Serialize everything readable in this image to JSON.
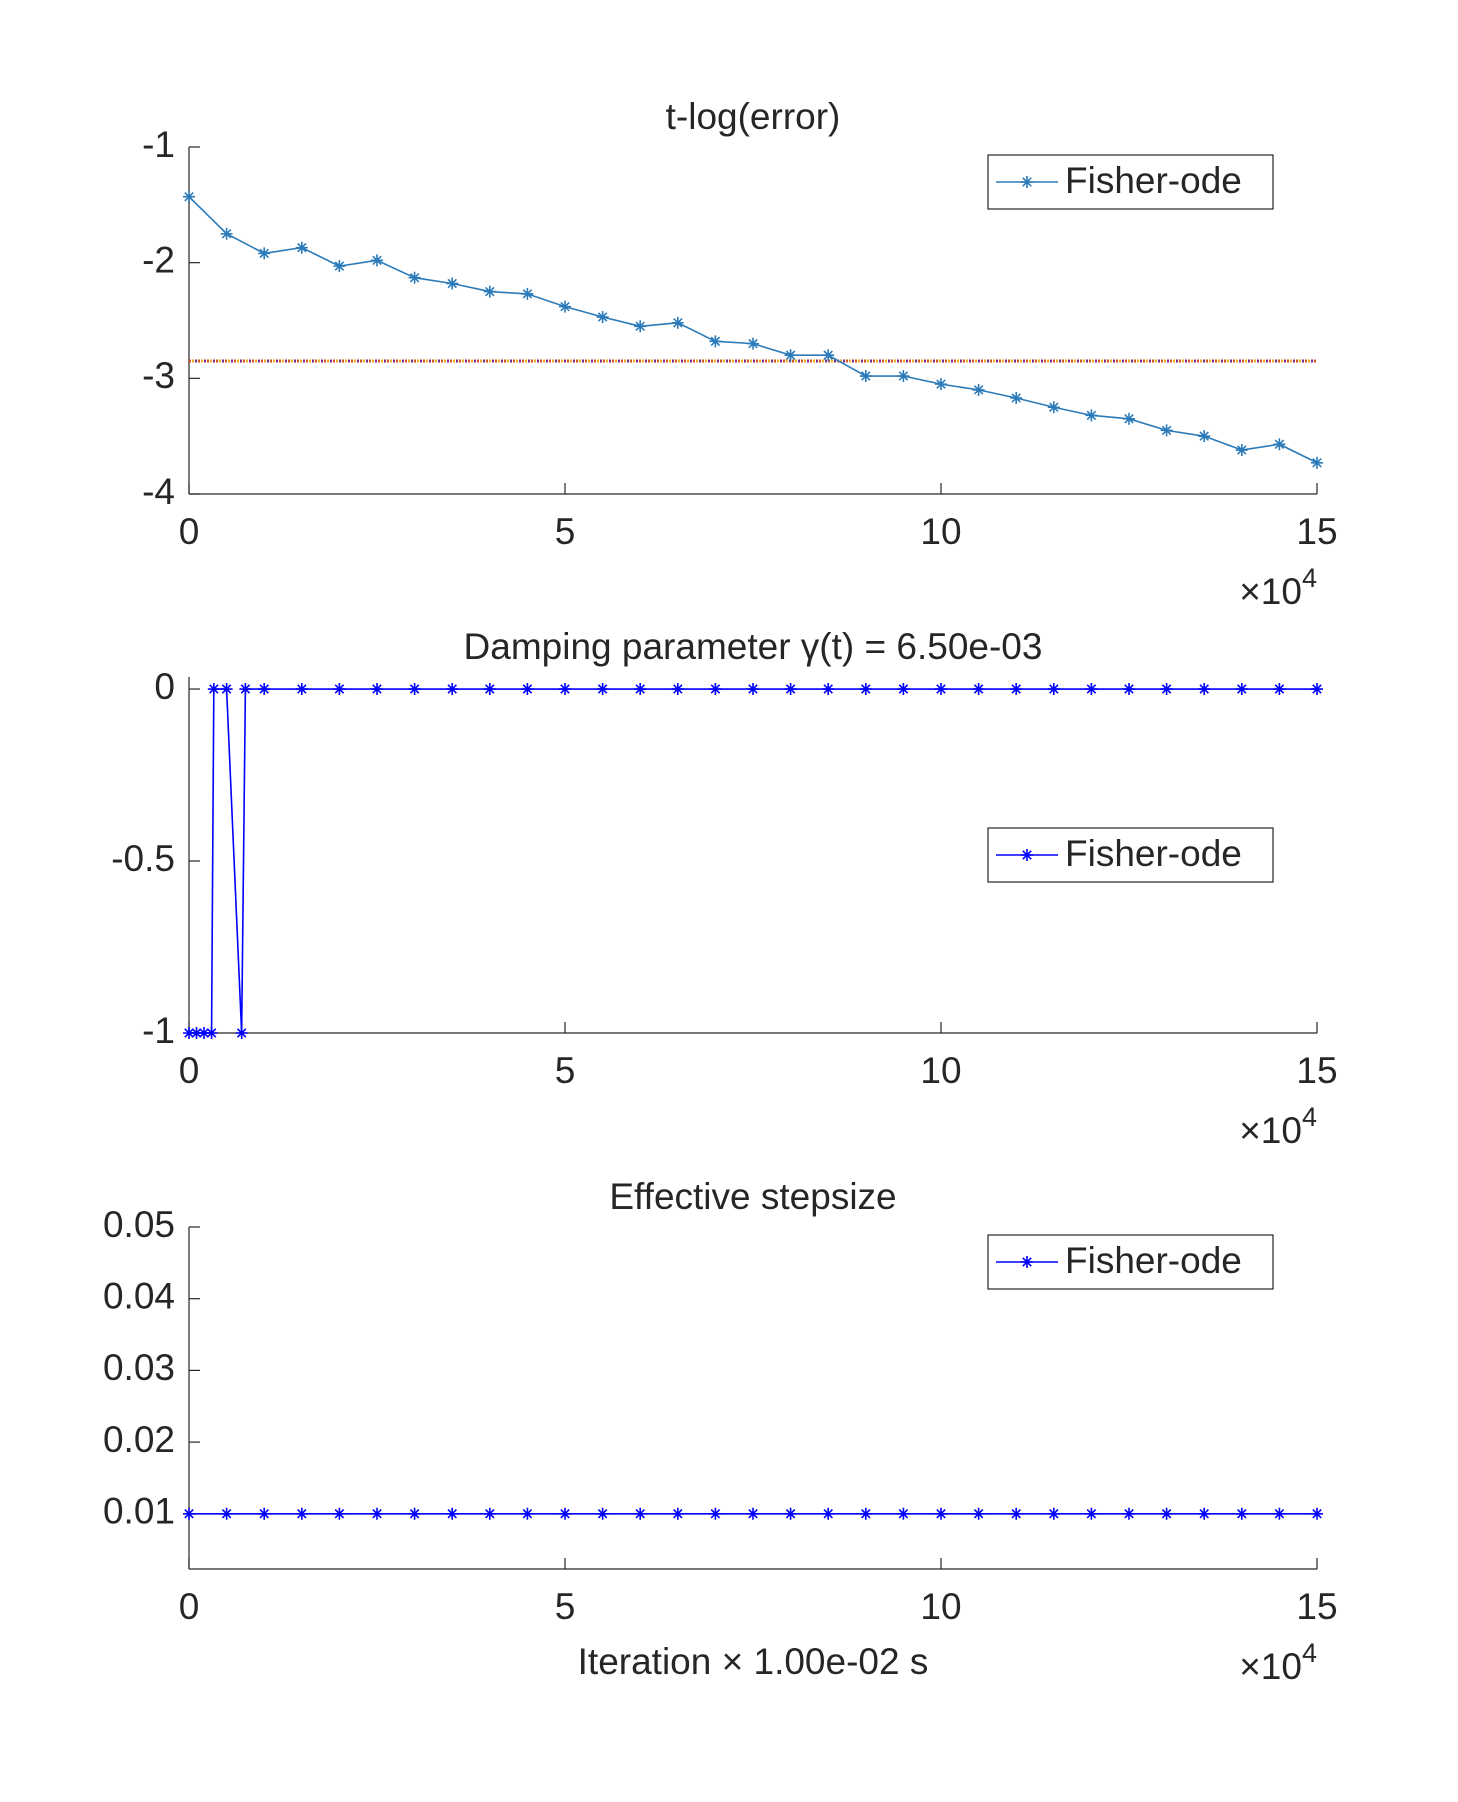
{
  "chart_data": [
    {
      "type": "line",
      "title": "t-log(error)",
      "series": [
        {
          "name": "Fisher-ode",
          "color": "#2b7bba",
          "marker": "*",
          "x": [
            0,
            0.5,
            1,
            1.5,
            2,
            2.5,
            3,
            3.5,
            4,
            4.5,
            5,
            5.5,
            6,
            6.5,
            7,
            7.5,
            8,
            8.5,
            9,
            9.5,
            10,
            10.5,
            11,
            11.5,
            12,
            12.5,
            13,
            13.5,
            14,
            14.5,
            15
          ],
          "values": [
            -1.43,
            -1.75,
            -1.92,
            -1.87,
            -2.03,
            -1.98,
            -2.13,
            -2.18,
            -2.25,
            -2.27,
            -2.38,
            -2.47,
            -2.55,
            -2.52,
            -2.68,
            -2.7,
            -2.8,
            -2.8,
            -2.98,
            -2.98,
            -3.05,
            -3.1,
            -3.17,
            -3.25,
            -3.32,
            -3.35,
            -3.45,
            -3.5,
            -3.62,
            -3.57,
            -3.73
          ]
        }
      ],
      "reference_line": {
        "value": -2.85,
        "colors": [
          "#d95319",
          "#edb120",
          "#7e2f8e"
        ]
      },
      "xlim": [
        0,
        15
      ],
      "xticks": [
        0,
        5,
        10,
        15
      ],
      "x_multiplier": {
        "base": "×10",
        "exponent": "4"
      },
      "ylim": [
        -4,
        -1
      ],
      "yticks": [
        -4,
        -3,
        -2,
        -1
      ],
      "legend": "northeast"
    },
    {
      "type": "line",
      "title": "Damping parameter γ(t) = 6.50e-03",
      "series": [
        {
          "name": "Fisher-ode",
          "color": "#0000ff",
          "marker": "*",
          "x": [
            0,
            0.1,
            0.2,
            0.3,
            0.33,
            0.5,
            0.7,
            0.75,
            1,
            1.5,
            2,
            2.5,
            3,
            3.5,
            4,
            4.5,
            5,
            5.5,
            6,
            6.5,
            7,
            7.5,
            8,
            8.5,
            9,
            9.5,
            10,
            10.5,
            11,
            11.5,
            12,
            12.5,
            13,
            13.5,
            14,
            14.5,
            15
          ],
          "values": [
            -1,
            -1,
            -1,
            -1,
            0,
            0,
            -1,
            0,
            0,
            0,
            0,
            0,
            0,
            0,
            0,
            0,
            0,
            0,
            0,
            0,
            0,
            0,
            0,
            0,
            0,
            0,
            0,
            0,
            0,
            0,
            0,
            0,
            0,
            0,
            0,
            0,
            0
          ]
        }
      ],
      "xlim": [
        0,
        15
      ],
      "xticks": [
        0,
        5,
        10,
        15
      ],
      "x_multiplier": {
        "base": "×10",
        "exponent": "4"
      },
      "ylim": [
        -1,
        0.035
      ],
      "yticks": [
        -1,
        -0.5,
        0
      ],
      "legend": "east"
    },
    {
      "type": "line",
      "title": "Effective stepsize",
      "xlabel": "Iteration × 1.00e-02 s",
      "series": [
        {
          "name": "Fisher-ode",
          "color": "#0000ff",
          "marker": "*",
          "x": [
            0,
            0.5,
            1,
            1.5,
            2,
            2.5,
            3,
            3.5,
            4,
            4.5,
            5,
            5.5,
            6,
            6.5,
            7,
            7.5,
            8,
            8.5,
            9,
            9.5,
            10,
            10.5,
            11,
            11.5,
            12,
            12.5,
            13,
            13.5,
            14,
            14.5,
            15
          ],
          "values": [
            0.01,
            0.01,
            0.01,
            0.01,
            0.01,
            0.01,
            0.01,
            0.01,
            0.01,
            0.01,
            0.01,
            0.01,
            0.01,
            0.01,
            0.01,
            0.01,
            0.01,
            0.01,
            0.01,
            0.01,
            0.01,
            0.01,
            0.01,
            0.01,
            0.01,
            0.01,
            0.01,
            0.01,
            0.01,
            0.01,
            0.01
          ]
        }
      ],
      "xlim": [
        0,
        15
      ],
      "xticks": [
        0,
        5,
        10,
        15
      ],
      "x_multiplier": {
        "base": "×10",
        "exponent": "4"
      },
      "ylim": [
        0.0023,
        0.05
      ],
      "yticks": [
        0.01,
        0.02,
        0.03,
        0.04,
        0.05
      ],
      "legend": "northeast"
    }
  ]
}
